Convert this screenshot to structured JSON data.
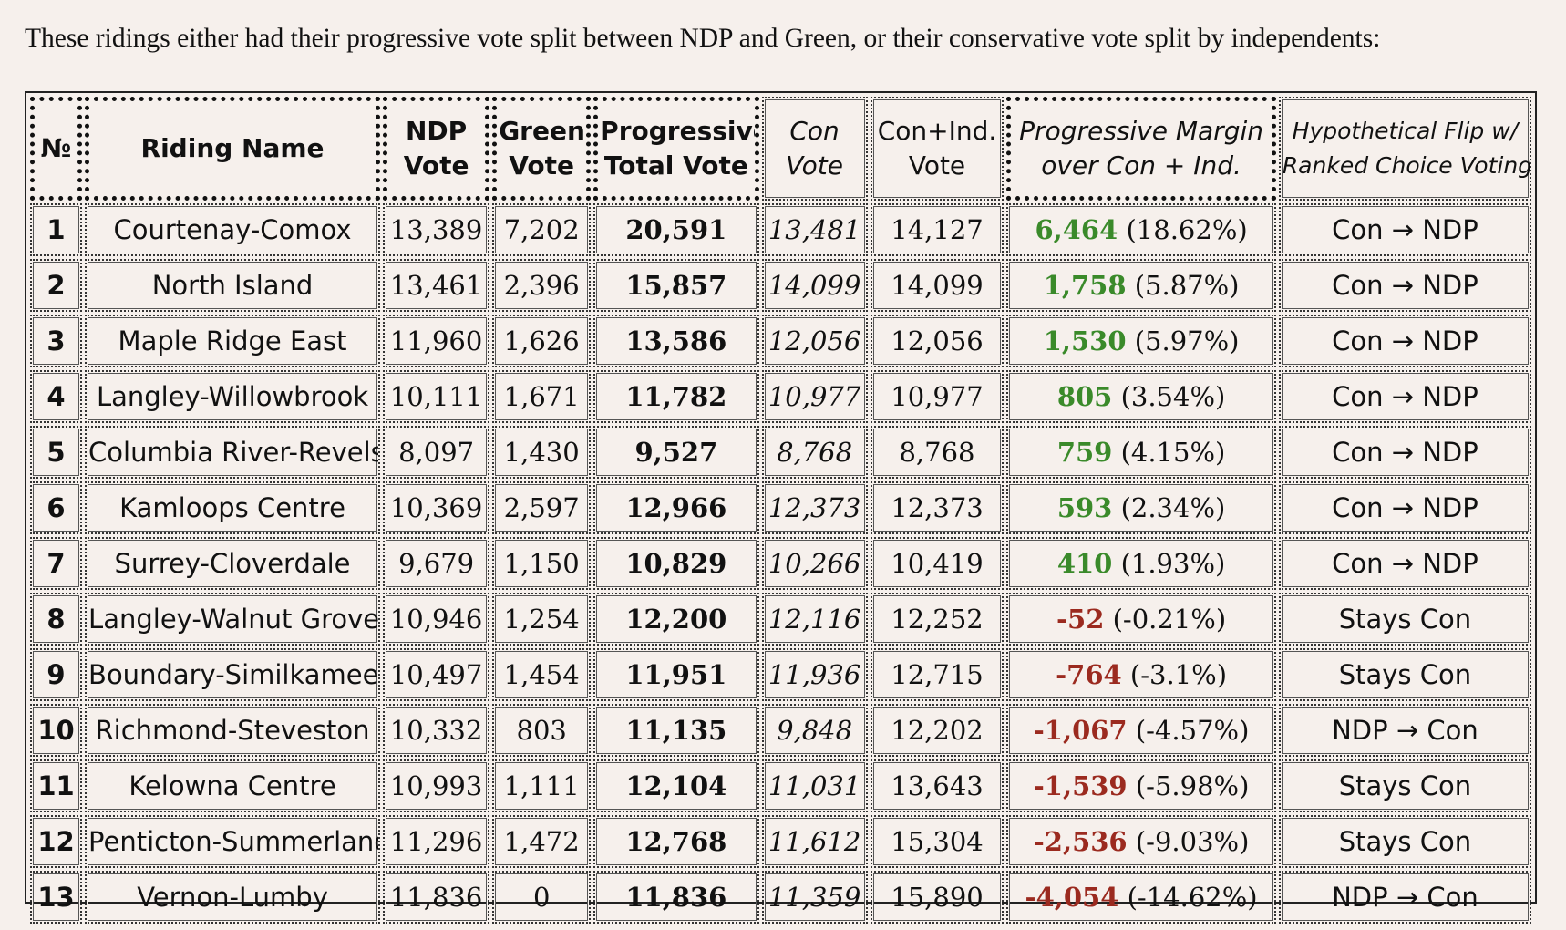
{
  "intro": "These ridings either had their progressive vote split between NDP and Green, or their conservative vote split by independents:",
  "headers": {
    "num": "№",
    "riding": "Riding Name",
    "ndp_1": "NDP",
    "ndp_2": "Vote",
    "green_1": "Green",
    "green_2": "Vote",
    "prog_1": "Progressive",
    "prog_2": "Total Vote",
    "con_1": "Con",
    "con_2": "Vote",
    "conind_1": "Con+Ind.",
    "conind_2": "Vote",
    "margin_1": "Progressive Margin",
    "margin_2": "over Con + Ind.",
    "flip_1": "Hypothetical Flip w/",
    "flip_2": "Ranked Choice Voting"
  },
  "colors": {
    "positive_margin": "#3a8a2a",
    "negative_margin": "#9b2a1f",
    "background": "#f6f0ec"
  },
  "rows": [
    {
      "num": "1",
      "riding": "Courtenay-Comox",
      "ndp": "13,389",
      "green": "7,202",
      "prog": "20,591",
      "con": "13,481",
      "conind": "14,127",
      "margin": "6,464",
      "pct": "(18.62%)",
      "sign": "pos",
      "flip": "Con → NDP"
    },
    {
      "num": "2",
      "riding": "North Island",
      "ndp": "13,461",
      "green": "2,396",
      "prog": "15,857",
      "con": "14,099",
      "conind": "14,099",
      "margin": "1,758",
      "pct": "(5.87%)",
      "sign": "pos",
      "flip": "Con → NDP"
    },
    {
      "num": "3",
      "riding": "Maple Ridge East",
      "ndp": "11,960",
      "green": "1,626",
      "prog": "13,586",
      "con": "12,056",
      "conind": "12,056",
      "margin": "1,530",
      "pct": "(5.97%)",
      "sign": "pos",
      "flip": "Con → NDP"
    },
    {
      "num": "4",
      "riding": "Langley-Willowbrook",
      "ndp": "10,111",
      "green": "1,671",
      "prog": "11,782",
      "con": "10,977",
      "conind": "10,977",
      "margin": "805",
      "pct": "(3.54%)",
      "sign": "pos",
      "flip": "Con → NDP"
    },
    {
      "num": "5",
      "riding": "Columbia River-Revelstoke",
      "ndp": "8,097",
      "green": "1,430",
      "prog": "9,527",
      "con": "8,768",
      "conind": "8,768",
      "margin": "759",
      "pct": "(4.15%)",
      "sign": "pos",
      "flip": "Con → NDP"
    },
    {
      "num": "6",
      "riding": "Kamloops Centre",
      "ndp": "10,369",
      "green": "2,597",
      "prog": "12,966",
      "con": "12,373",
      "conind": "12,373",
      "margin": "593",
      "pct": "(2.34%)",
      "sign": "pos",
      "flip": "Con → NDP"
    },
    {
      "num": "7",
      "riding": "Surrey-Cloverdale",
      "ndp": "9,679",
      "green": "1,150",
      "prog": "10,829",
      "con": "10,266",
      "conind": "10,419",
      "margin": "410",
      "pct": "(1.93%)",
      "sign": "pos",
      "flip": "Con → NDP"
    },
    {
      "num": "8",
      "riding": "Langley-Walnut Grove",
      "ndp": "10,946",
      "green": "1,254",
      "prog": "12,200",
      "con": "12,116",
      "conind": "12,252",
      "margin": "-52",
      "pct": "(-0.21%)",
      "sign": "neg",
      "flip": "Stays Con"
    },
    {
      "num": "9",
      "riding": "Boundary-Similkameen",
      "ndp": "10,497",
      "green": "1,454",
      "prog": "11,951",
      "con": "11,936",
      "conind": "12,715",
      "margin": "-764",
      "pct": "(-3.1%)",
      "sign": "neg",
      "flip": "Stays Con"
    },
    {
      "num": "10",
      "riding": "Richmond-Steveston",
      "ndp": "10,332",
      "green": "803",
      "prog": "11,135",
      "con": "9,848",
      "conind": "12,202",
      "margin": "-1,067",
      "pct": "(-4.57%)",
      "sign": "neg",
      "flip": "NDP → Con"
    },
    {
      "num": "11",
      "riding": "Kelowna Centre",
      "ndp": "10,993",
      "green": "1,111",
      "prog": "12,104",
      "con": "11,031",
      "conind": "13,643",
      "margin": "-1,539",
      "pct": "(-5.98%)",
      "sign": "neg",
      "flip": "Stays Con"
    },
    {
      "num": "12",
      "riding": "Penticton-Summerland",
      "ndp": "11,296",
      "green": "1,472",
      "prog": "12,768",
      "con": "11,612",
      "conind": "15,304",
      "margin": "-2,536",
      "pct": "(-9.03%)",
      "sign": "neg",
      "flip": "Stays Con"
    },
    {
      "num": "13",
      "riding": "Vernon-Lumby",
      "ndp": "11,836",
      "green": "0",
      "prog": "11,836",
      "con": "11,359",
      "conind": "15,890",
      "margin": "-4,054",
      "pct": "(-14.62%)",
      "sign": "neg",
      "flip": "NDP → Con"
    }
  ]
}
